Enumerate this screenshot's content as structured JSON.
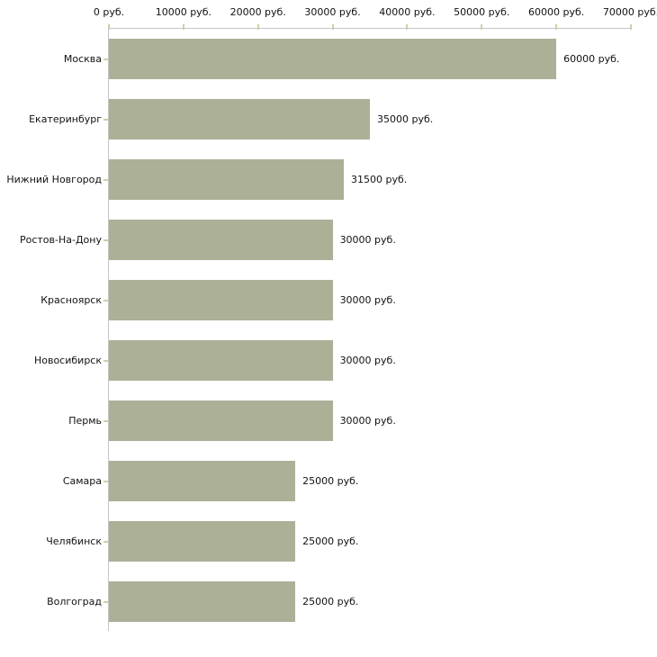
{
  "chart_data": {
    "type": "bar",
    "orientation": "horizontal",
    "title": "",
    "xlabel": "",
    "ylabel": "",
    "xlim": [
      0,
      70000
    ],
    "grid": false,
    "legend": "none",
    "categories": [
      "Москва",
      "Екатеринбург",
      "Нижний Новгород",
      "Ростов-На-Дону",
      "Красноярск",
      "Новосибирск",
      "Пермь",
      "Самара",
      "Челябинск",
      "Волгоград"
    ],
    "values": [
      60000,
      35000,
      31500,
      30000,
      30000,
      30000,
      30000,
      25000,
      25000,
      25000
    ],
    "value_labels": [
      "60000 руб.",
      "35000 руб.",
      "31500 руб.",
      "30000 руб.",
      "30000 руб.",
      "30000 руб.",
      "30000 руб.",
      "25000 руб.",
      "25000 руб.",
      "25000 руб."
    ],
    "x_ticks": [
      "0 руб.",
      "10000 руб.",
      "20000 руб.",
      "30000 руб.",
      "40000 руб.",
      "50000 руб.",
      "60000 руб.",
      "70000 руб."
    ],
    "colors": {
      "bar": "#abb097",
      "axis_line": "#c6c6c6",
      "tick_mark": "#cfcfa8",
      "text": "#111111",
      "background": "#ffffff"
    }
  }
}
